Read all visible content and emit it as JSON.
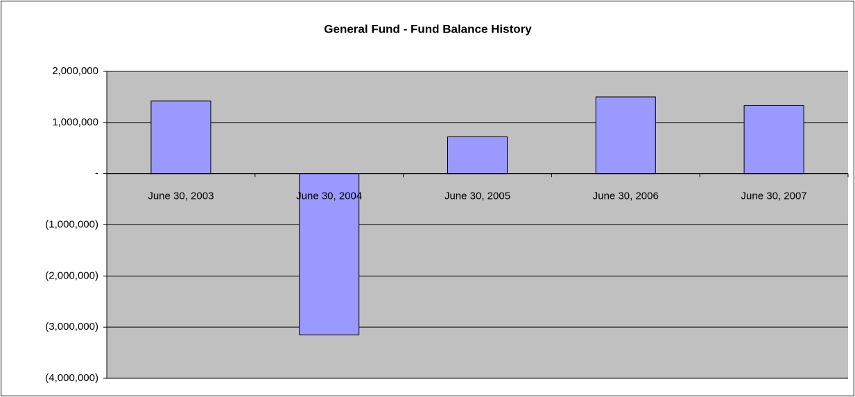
{
  "chart_data": {
    "type": "bar",
    "title": "General Fund - Fund Balance History",
    "categories": [
      "June 30, 2003",
      "June 30, 2004",
      "June 30, 2005",
      "June 30, 2006",
      "June 30, 2007"
    ],
    "values": [
      1420000,
      -3150000,
      720000,
      1500000,
      1330000
    ],
    "color": "#9999ff",
    "ylim": [
      -4000000,
      2000000
    ],
    "yticks": [
      {
        "value": -4000000,
        "label": "(4,000,000)"
      },
      {
        "value": -3000000,
        "label": "(3,000,000)"
      },
      {
        "value": -2000000,
        "label": "(2,000,000)"
      },
      {
        "value": -1000000,
        "label": "(1,000,000)"
      },
      {
        "value": 0,
        "label": "-"
      },
      {
        "value": 1000000,
        "label": "1,000,000"
      },
      {
        "value": 2000000,
        "label": "2,000,000"
      }
    ],
    "grid": true
  }
}
